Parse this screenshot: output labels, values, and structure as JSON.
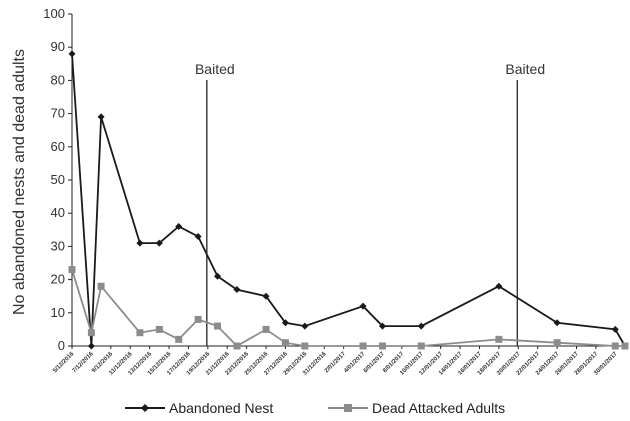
{
  "chart_data": {
    "type": "line",
    "title": "",
    "xlabel": "",
    "ylabel": "No abandoned nests and dead adults",
    "ylim": [
      0,
      100
    ],
    "yticks": [
      0,
      10,
      20,
      30,
      40,
      50,
      60,
      70,
      80,
      90,
      100
    ],
    "grid": false,
    "legend_position": "bottom",
    "categories": [
      "5/12/2016",
      "7/12/2016",
      "9/12/2016",
      "11/12/2016",
      "13/12/2016",
      "15/12/2016",
      "17/12/2016",
      "19/12/2016",
      "21/12/2016",
      "23/12/2016",
      "25/12/2016",
      "27/12/2016",
      "29/12/2016",
      "31/12/2016",
      "2/01/2017",
      "4/01/2017",
      "6/01/2017",
      "8/01/2017",
      "10/01/2017",
      "12/01/2017",
      "14/01/2017",
      "16/01/2017",
      "18/01/2017",
      "20/01/2017",
      "22/01/2017",
      "24/01/2017",
      "26/01/2017",
      "28/01/2017",
      "30/01/2017"
    ],
    "series": [
      {
        "name": "Abandoned Nest",
        "color": "#1a1a1a",
        "marker": "diamond",
        "points": [
          [
            0,
            88
          ],
          [
            1,
            0
          ],
          [
            1.5,
            69
          ],
          [
            3.5,
            31
          ],
          [
            4.5,
            31
          ],
          [
            5.5,
            36
          ],
          [
            6.5,
            33
          ],
          [
            7.5,
            21
          ],
          [
            8.5,
            17
          ],
          [
            10,
            15
          ],
          [
            11,
            7
          ],
          [
            12,
            6
          ],
          [
            15,
            12
          ],
          [
            16,
            6
          ],
          [
            18,
            6
          ],
          [
            22,
            18
          ],
          [
            25,
            7
          ],
          [
            28,
            5
          ],
          [
            28.5,
            0
          ]
        ]
      },
      {
        "name": "Dead Attacked Adults",
        "color": "#8c8c8c",
        "marker": "square",
        "points": [
          [
            0,
            23
          ],
          [
            1,
            4
          ],
          [
            1.5,
            18
          ],
          [
            3.5,
            4
          ],
          [
            4.5,
            5
          ],
          [
            5.5,
            2
          ],
          [
            6.5,
            8
          ],
          [
            7.5,
            6
          ],
          [
            8.5,
            0
          ],
          [
            10,
            5
          ],
          [
            11,
            1
          ],
          [
            12,
            0
          ],
          [
            15,
            0
          ],
          [
            16,
            0
          ],
          [
            18,
            0
          ],
          [
            22,
            2
          ],
          [
            25,
            1
          ],
          [
            28,
            0
          ],
          [
            28.5,
            0
          ]
        ]
      }
    ],
    "annotations": [
      {
        "text": "Baited",
        "x": 7,
        "type": "vertical-line"
      },
      {
        "text": "Baited",
        "x": 23,
        "type": "vertical-line"
      }
    ]
  }
}
